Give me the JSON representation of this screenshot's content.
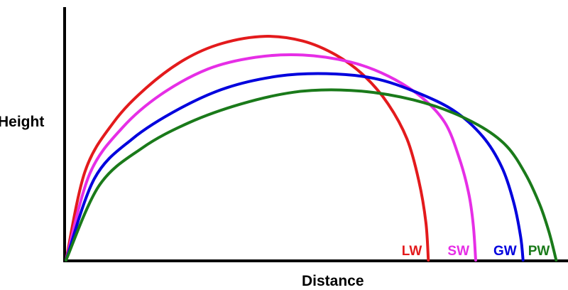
{
  "chart_data": {
    "type": "line",
    "title": "",
    "xlabel": "Distance",
    "ylabel": "Height",
    "grid": false,
    "legend": "none",
    "xlim": [
      0,
      100
    ],
    "ylim": [
      0,
      100
    ],
    "series": [
      {
        "name": "LW",
        "color": "#e31a1c",
        "points": [
          [
            0,
            0
          ],
          [
            4,
            38
          ],
          [
            10,
            59
          ],
          [
            17,
            74
          ],
          [
            25,
            86
          ],
          [
            33,
            93
          ],
          [
            42,
            96
          ],
          [
            50,
            94
          ],
          [
            57,
            88
          ],
          [
            63,
            79
          ],
          [
            68,
            67
          ],
          [
            72,
            52
          ],
          [
            74.5,
            34
          ],
          [
            76,
            16
          ],
          [
            76.5,
            0
          ]
        ]
      },
      {
        "name": "SW",
        "color": "#e62ee6",
        "points": [
          [
            0,
            0
          ],
          [
            5,
            37
          ],
          [
            12,
            57
          ],
          [
            20,
            71
          ],
          [
            30,
            82
          ],
          [
            40,
            87
          ],
          [
            50,
            88
          ],
          [
            60,
            85
          ],
          [
            68,
            79
          ],
          [
            75,
            70
          ],
          [
            80,
            59
          ],
          [
            83,
            44
          ],
          [
            85,
            29
          ],
          [
            86,
            15
          ],
          [
            86.5,
            0
          ]
        ]
      },
      {
        "name": "GW",
        "color": "#0000dd",
        "points": [
          [
            0,
            0
          ],
          [
            6,
            35
          ],
          [
            14,
            52
          ],
          [
            24,
            65
          ],
          [
            34,
            74
          ],
          [
            45,
            79
          ],
          [
            55,
            80
          ],
          [
            65,
            78
          ],
          [
            74,
            72
          ],
          [
            82,
            64
          ],
          [
            88,
            53
          ],
          [
            92,
            40
          ],
          [
            94.5,
            25
          ],
          [
            96,
            10
          ],
          [
            96.5,
            0
          ]
        ]
      },
      {
        "name": "PW",
        "color": "#1a7a1a",
        "points": [
          [
            0,
            0
          ],
          [
            7,
            32
          ],
          [
            16,
            48
          ],
          [
            26,
            59
          ],
          [
            37,
            67
          ],
          [
            48,
            72
          ],
          [
            58,
            73
          ],
          [
            68,
            71
          ],
          [
            78,
            66
          ],
          [
            87,
            58
          ],
          [
            93,
            49
          ],
          [
            97,
            37
          ],
          [
            100,
            24
          ],
          [
            102,
            12
          ],
          [
            103.5,
            0
          ]
        ]
      }
    ]
  }
}
